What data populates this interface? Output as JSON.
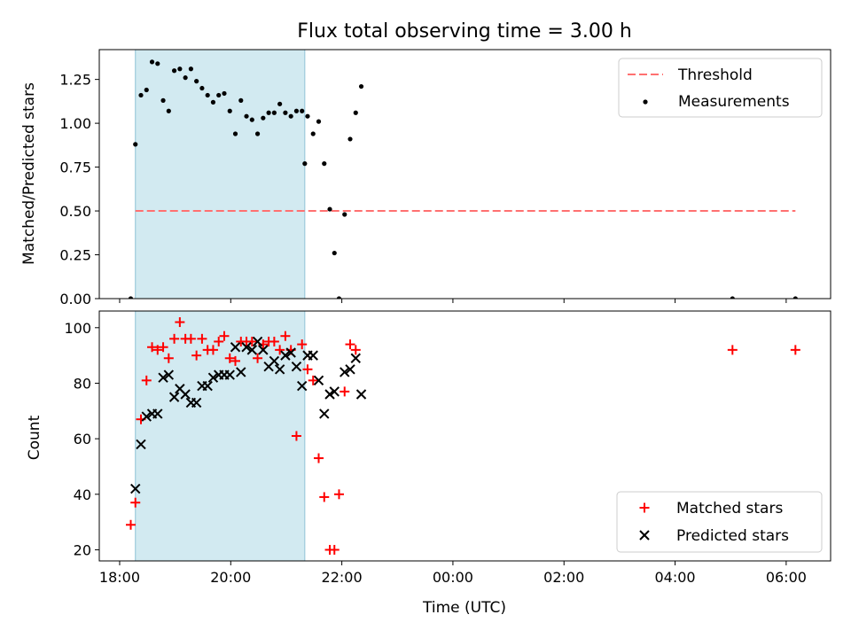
{
  "title": "Flux total observing time = 3.00 h",
  "colors": {
    "threshold": "#ff7070",
    "measurement": "#000000",
    "matched": "#ff0000",
    "predicted": "#000000",
    "span": "#add8e6"
  },
  "chart_data": [
    {
      "type": "scatter",
      "panel": "top",
      "ylabel": "Matched/Predicted stars",
      "ylim": [
        0,
        1.42
      ],
      "xlim": [
        "17:38",
        "06:48"
      ],
      "yticks": [
        "0.00",
        "0.25",
        "0.50",
        "0.75",
        "1.00",
        "1.25"
      ],
      "yticks_values": [
        0,
        0.25,
        0.5,
        0.75,
        1.0,
        1.25
      ],
      "shaded_span": [
        "18:17",
        "21:20"
      ],
      "threshold": {
        "label": "Threshold",
        "value": 0.5,
        "x_range": [
          "18:17",
          "06:10"
        ]
      },
      "legend": {
        "position": "top-right",
        "entries": [
          "Threshold",
          "Measurements"
        ]
      },
      "measurements": [
        [
          "18:12",
          0.0
        ],
        [
          "18:17",
          0.88
        ],
        [
          "18:23",
          1.16
        ],
        [
          "18:29",
          1.19
        ],
        [
          "18:35",
          1.35
        ],
        [
          "18:41",
          1.34
        ],
        [
          "18:47",
          1.13
        ],
        [
          "18:53",
          1.07
        ],
        [
          "18:59",
          1.3
        ],
        [
          "19:05",
          1.31
        ],
        [
          "19:11",
          1.26
        ],
        [
          "19:17",
          1.31
        ],
        [
          "19:23",
          1.24
        ],
        [
          "19:29",
          1.2
        ],
        [
          "19:35",
          1.16
        ],
        [
          "19:41",
          1.12
        ],
        [
          "19:47",
          1.16
        ],
        [
          "19:53",
          1.17
        ],
        [
          "19:59",
          1.07
        ],
        [
          "20:05",
          0.94
        ],
        [
          "20:11",
          1.13
        ],
        [
          "20:17",
          1.04
        ],
        [
          "20:23",
          1.02
        ],
        [
          "20:29",
          0.94
        ],
        [
          "20:35",
          1.03
        ],
        [
          "20:41",
          1.06
        ],
        [
          "20:47",
          1.06
        ],
        [
          "20:53",
          1.11
        ],
        [
          "20:59",
          1.06
        ],
        [
          "21:05",
          1.04
        ],
        [
          "21:11",
          1.07
        ],
        [
          "21:17",
          1.07
        ],
        [
          "21:20",
          0.77
        ],
        [
          "21:23",
          1.04
        ],
        [
          "21:29",
          0.94
        ],
        [
          "21:35",
          1.01
        ],
        [
          "21:41",
          0.77
        ],
        [
          "21:47",
          0.51
        ],
        [
          "21:52",
          0.26
        ],
        [
          "21:57",
          0.0
        ],
        [
          "22:03",
          0.48
        ],
        [
          "22:09",
          0.91
        ],
        [
          "22:15",
          1.06
        ],
        [
          "22:21",
          1.21
        ],
        [
          "05:02",
          0.0
        ],
        [
          "06:10",
          0.0
        ]
      ]
    },
    {
      "type": "scatter",
      "panel": "bottom",
      "xlabel": "Time (UTC)",
      "ylabel": "Count",
      "ylim": [
        16,
        106
      ],
      "xlim": [
        "17:38",
        "06:48"
      ],
      "yticks": [
        "20",
        "40",
        "60",
        "80",
        "100"
      ],
      "yticks_values": [
        20,
        40,
        60,
        80,
        100
      ],
      "xticks": [
        "18:00",
        "20:00",
        "22:00",
        "00:00",
        "02:00",
        "04:00",
        "06:00"
      ],
      "shaded_span": [
        "18:17",
        "21:20"
      ],
      "legend": {
        "position": "bottom-right",
        "entries": [
          "Matched stars",
          "Predicted stars"
        ]
      },
      "series": [
        {
          "name": "Matched stars",
          "marker": "+",
          "points": [
            [
              "18:12",
              29
            ],
            [
              "18:17",
              37
            ],
            [
              "18:23",
              67
            ],
            [
              "18:29",
              81
            ],
            [
              "18:35",
              93
            ],
            [
              "18:41",
              92
            ],
            [
              "18:47",
              93
            ],
            [
              "18:53",
              89
            ],
            [
              "18:59",
              96
            ],
            [
              "19:05",
              102
            ],
            [
              "19:11",
              96
            ],
            [
              "19:17",
              96
            ],
            [
              "19:23",
              90
            ],
            [
              "19:29",
              96
            ],
            [
              "19:35",
              92
            ],
            [
              "19:41",
              92
            ],
            [
              "19:47",
              95
            ],
            [
              "19:53",
              97
            ],
            [
              "19:59",
              89
            ],
            [
              "20:05",
              88
            ],
            [
              "20:11",
              95
            ],
            [
              "20:17",
              95
            ],
            [
              "20:23",
              95
            ],
            [
              "20:29",
              89
            ],
            [
              "20:35",
              94
            ],
            [
              "20:41",
              95
            ],
            [
              "20:47",
              95
            ],
            [
              "20:53",
              92
            ],
            [
              "20:59",
              97
            ],
            [
              "21:05",
              92
            ],
            [
              "21:11",
              61
            ],
            [
              "21:17",
              94
            ],
            [
              "21:23",
              85
            ],
            [
              "21:29",
              81
            ],
            [
              "21:35",
              53
            ],
            [
              "21:41",
              39
            ],
            [
              "21:47",
              20
            ],
            [
              "21:52",
              20
            ],
            [
              "21:57",
              40
            ],
            [
              "22:03",
              77
            ],
            [
              "22:09",
              94
            ],
            [
              "22:15",
              92
            ],
            [
              "05:02",
              92
            ],
            [
              "06:10",
              92
            ]
          ]
        },
        {
          "name": "Predicted stars",
          "marker": "x",
          "points": [
            [
              "18:17",
              42
            ],
            [
              "18:23",
              58
            ],
            [
              "18:29",
              68
            ],
            [
              "18:35",
              69
            ],
            [
              "18:41",
              69
            ],
            [
              "18:47",
              82
            ],
            [
              "18:53",
              83
            ],
            [
              "18:59",
              75
            ],
            [
              "19:05",
              78
            ],
            [
              "19:11",
              76
            ],
            [
              "19:17",
              73
            ],
            [
              "19:23",
              73
            ],
            [
              "19:29",
              79
            ],
            [
              "19:35",
              79
            ],
            [
              "19:41",
              82
            ],
            [
              "19:47",
              83
            ],
            [
              "19:53",
              83
            ],
            [
              "19:59",
              83
            ],
            [
              "20:05",
              93
            ],
            [
              "20:11",
              84
            ],
            [
              "20:17",
              93
            ],
            [
              "20:23",
              92
            ],
            [
              "20:29",
              95
            ],
            [
              "20:35",
              92
            ],
            [
              "20:41",
              86
            ],
            [
              "20:47",
              88
            ],
            [
              "20:53",
              85
            ],
            [
              "20:59",
              90
            ],
            [
              "21:05",
              91
            ],
            [
              "21:11",
              86
            ],
            [
              "21:17",
              79
            ],
            [
              "21:23",
              90
            ],
            [
              "21:29",
              90
            ],
            [
              "21:35",
              81
            ],
            [
              "21:41",
              69
            ],
            [
              "21:47",
              76
            ],
            [
              "21:52",
              77
            ],
            [
              "22:03",
              84
            ],
            [
              "22:09",
              85
            ],
            [
              "22:15",
              89
            ],
            [
              "22:21",
              76
            ]
          ]
        }
      ]
    }
  ]
}
